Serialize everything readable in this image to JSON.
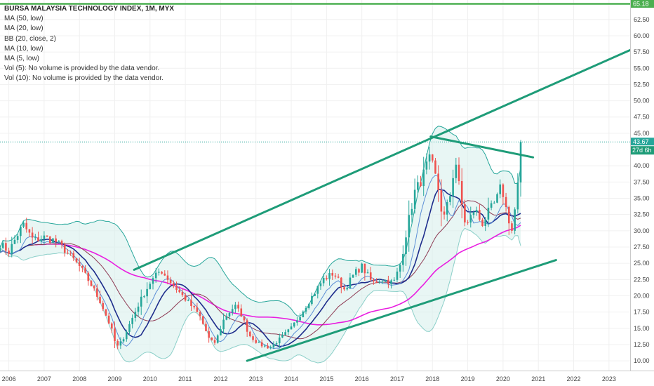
{
  "chart_data": {
    "type": "candlestick",
    "title": "BURSA MALAYSIA TECHNOLOGY INDEX, 1M, MYX",
    "indicators": [
      "MA (50, low)",
      "MA (20, low)",
      "BB (20, close, 2)",
      "MA (10, low)",
      "MA (5, low)",
      "Vol (5): No volume is provided by the data vendor.",
      "Vol (10): No volume is provided by the data vendor."
    ],
    "x_tick_labels": [
      "2006",
      "2007",
      "2008",
      "2009",
      "2010",
      "2011",
      "2012",
      "2013",
      "2014",
      "2015",
      "2016",
      "2017",
      "2018",
      "2019",
      "2020",
      "2021",
      "2022",
      "2023"
    ],
    "y_tick_labels": [
      "62.50",
      "60.00",
      "57.50",
      "55.00",
      "52.50",
      "50.00",
      "47.50",
      "45.00",
      "40.00",
      "37.50",
      "35.00",
      "32.50",
      "30.00",
      "27.50",
      "25.00",
      "22.50",
      "20.00",
      "17.50",
      "15.00",
      "12.50",
      "10.00"
    ],
    "ylim": [
      8.5,
      65.5
    ],
    "xlim": [
      2005.75,
      2023.6
    ],
    "last_price": "43.67",
    "countdown": "27d 6h",
    "top_level": "65.18",
    "colors": {
      "up": "#26a69a",
      "down": "#ef5350",
      "ma50": "#e91ee0",
      "ma20": "#8e3b54",
      "ma10": "#1e2d8c",
      "ma5": "#5c8fd6",
      "bb_line": "#26a69a",
      "bb_fill": "#d9f0ec",
      "trendline": "#1e9c78",
      "top_line": "#4caf50"
    },
    "ohlc_anchors": [
      [
        2005.75,
        28.0
      ],
      [
        2006.0,
        26.8
      ],
      [
        2006.4,
        31.0
      ],
      [
        2006.7,
        28.5
      ],
      [
        2007.0,
        29.0
      ],
      [
        2007.3,
        28.5
      ],
      [
        2007.6,
        27.0
      ],
      [
        2008.0,
        24.5
      ],
      [
        2008.3,
        22.0
      ],
      [
        2008.6,
        19.0
      ],
      [
        2008.9,
        15.0
      ],
      [
        2009.05,
        12.0
      ],
      [
        2009.2,
        13.0
      ],
      [
        2009.45,
        16.0
      ],
      [
        2009.7,
        19.0
      ],
      [
        2010.0,
        22.0
      ],
      [
        2010.3,
        24.0
      ],
      [
        2010.6,
        22.0
      ],
      [
        2011.0,
        19.5
      ],
      [
        2011.4,
        17.0
      ],
      [
        2011.7,
        13.0
      ],
      [
        2011.85,
        12.8
      ],
      [
        2012.1,
        16.5
      ],
      [
        2012.4,
        18.5
      ],
      [
        2012.6,
        17.0
      ],
      [
        2012.8,
        14.0
      ],
      [
        2013.1,
        12.5
      ],
      [
        2013.4,
        12.0
      ],
      [
        2013.7,
        13.5
      ],
      [
        2014.0,
        15.0
      ],
      [
        2014.3,
        17.5
      ],
      [
        2014.6,
        20.0
      ],
      [
        2014.9,
        22.5
      ],
      [
        2015.2,
        23.5
      ],
      [
        2015.5,
        21.0
      ],
      [
        2015.8,
        23.5
      ],
      [
        2016.0,
        24.5
      ],
      [
        2016.3,
        22.0
      ],
      [
        2016.6,
        22.5
      ],
      [
        2016.9,
        22.0
      ],
      [
        2017.1,
        25.0
      ],
      [
        2017.3,
        31.0
      ],
      [
        2017.5,
        36.0
      ],
      [
        2017.7,
        38.0
      ],
      [
        2017.9,
        41.0
      ],
      [
        2018.0,
        40.0
      ],
      [
        2018.15,
        37.0
      ],
      [
        2018.3,
        31.5
      ],
      [
        2018.5,
        35.5
      ],
      [
        2018.65,
        41.0
      ],
      [
        2018.8,
        35.0
      ],
      [
        2018.95,
        30.5
      ],
      [
        2019.2,
        33.5
      ],
      [
        2019.4,
        31.0
      ],
      [
        2019.6,
        33.0
      ],
      [
        2019.8,
        34.5
      ],
      [
        2019.95,
        37.0
      ],
      [
        2020.1,
        33.0
      ],
      [
        2020.25,
        30.0
      ],
      [
        2020.38,
        35.0
      ],
      [
        2020.5,
        41.5
      ],
      [
        2020.58,
        43.67
      ]
    ],
    "trendlines": [
      {
        "from": [
          2009.55,
          24.0
        ],
        "to": [
          2023.6,
          57.8
        ]
      },
      {
        "from": [
          2012.75,
          10.0
        ],
        "to": [
          2021.5,
          25.5
        ]
      },
      {
        "from": [
          2017.95,
          44.5
        ],
        "to": [
          2020.85,
          41.3
        ]
      }
    ]
  }
}
